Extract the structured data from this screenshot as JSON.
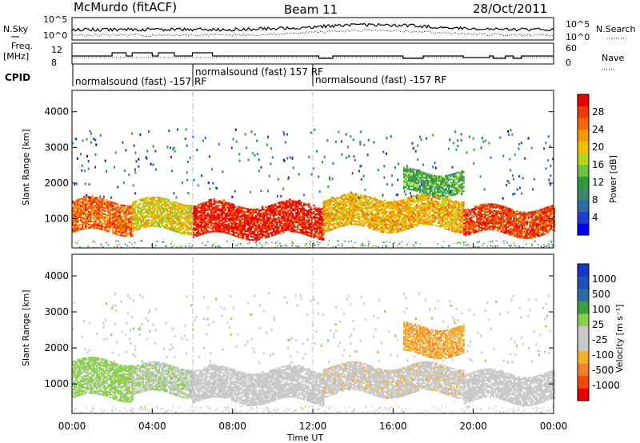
{
  "header": {
    "station": "McMurdo (fitACF)",
    "beam": "Beam 11",
    "date": "28/Oct/2011"
  },
  "noise_panel": {
    "left_label": "N.Sky",
    "right_label": "N.Search",
    "left_ticks": [
      "10^5",
      "10^0"
    ],
    "right_ticks": [
      "10^5",
      "10^0"
    ]
  },
  "freq_panel": {
    "left_label_1": "Freq.",
    "left_label_2": "[MHz]",
    "right_label": "Nave",
    "left_ticks": [
      "12",
      "8"
    ],
    "right_ticks": [
      "60",
      "0"
    ]
  },
  "cpid": {
    "label": "CPID",
    "segments": [
      {
        "start_hour": 0,
        "text": "normalsound (fast) -157 RF"
      },
      {
        "start_hour": 6,
        "text": "normalsound (fast) 157 RF"
      },
      {
        "start_hour": 12,
        "text": "normalsound (fast) -157 RF"
      }
    ]
  },
  "x_axis": {
    "label": "Time UT",
    "ticks": [
      "00:00",
      "04:00",
      "08:00",
      "12:00",
      "16:00",
      "20:00",
      "00:00"
    ]
  },
  "chart_data": [
    {
      "type": "heatmap",
      "title": "Power",
      "xlabel": "Time UT",
      "ylabel": "Slant Range [km]",
      "xlim": [
        0,
        24
      ],
      "ylim": [
        180,
        4600
      ],
      "y_ticks": [
        1000,
        2000,
        3000,
        4000
      ],
      "colorbar": {
        "label": "Power [dB]",
        "ticks": [
          "4",
          "8",
          "12",
          "16",
          "20",
          "24",
          "28"
        ],
        "range": [
          0,
          30
        ],
        "colors": [
          "#0000ff",
          "#1f3fc8",
          "#2a6aa8",
          "#3a8a6a",
          "#2e9a3e",
          "#69c23a",
          "#b8d51e",
          "#f0c000",
          "#f59a00",
          "#f06800",
          "#ee3a00",
          "#e60000"
        ]
      },
      "echo_bands": [
        {
          "t_start": 0.0,
          "t_end": 3.0,
          "range_low": 600,
          "range_high": 1500,
          "power": 24
        },
        {
          "t_start": 3.0,
          "t_end": 6.0,
          "range_low": 650,
          "range_high": 1500,
          "power": 18
        },
        {
          "t_start": 6.0,
          "t_end": 12.5,
          "range_low": 500,
          "range_high": 1400,
          "power": 28
        },
        {
          "t_start": 12.5,
          "t_end": 19.5,
          "range_low": 700,
          "range_high": 1600,
          "power": 20
        },
        {
          "t_start": 19.5,
          "t_end": 24.0,
          "range_low": 550,
          "range_high": 1300,
          "power": 26
        },
        {
          "t_start": 16.5,
          "t_end": 19.5,
          "range_low": 1700,
          "range_high": 2300,
          "power": 12
        }
      ]
    },
    {
      "type": "heatmap",
      "title": "Velocity",
      "xlabel": "Time UT",
      "ylabel": "Slant Range [km]",
      "xlim": [
        0,
        24
      ],
      "ylim": [
        180,
        4600
      ],
      "y_ticks": [
        1000,
        2000,
        3000,
        4000
      ],
      "colorbar": {
        "label": "Velocity [m s⁻¹]",
        "ticks": [
          "1000",
          "500",
          "100",
          "25",
          "-25",
          "-100",
          "-500",
          "-1000"
        ],
        "range": [
          -1000,
          1000
        ],
        "colors": [
          "#e60000",
          "#f04a00",
          "#f08030",
          "#f5b030",
          "#c8c8c8",
          "#c8c8c8",
          "#88d04a",
          "#3aa040",
          "#2a6aa0",
          "#2050b8",
          "#1838c8"
        ]
      },
      "echo_bands": [
        {
          "t_start": 0.0,
          "t_end": 3.0,
          "range_low": 600,
          "range_high": 1600,
          "velocity": 150
        },
        {
          "t_start": 3.0,
          "t_end": 6.0,
          "range_low": 700,
          "range_high": 1500,
          "velocity": 60
        },
        {
          "t_start": 6.0,
          "t_end": 12.5,
          "range_low": 500,
          "range_high": 1400,
          "velocity": -120
        },
        {
          "t_start": 12.5,
          "t_end": 19.5,
          "range_low": 700,
          "range_high": 1500,
          "velocity": -200
        },
        {
          "t_start": 19.5,
          "t_end": 24.0,
          "range_low": 500,
          "range_high": 1300,
          "velocity": -80
        },
        {
          "t_start": 16.5,
          "t_end": 19.5,
          "range_low": 1800,
          "range_high": 2600,
          "velocity": -400
        }
      ]
    }
  ]
}
